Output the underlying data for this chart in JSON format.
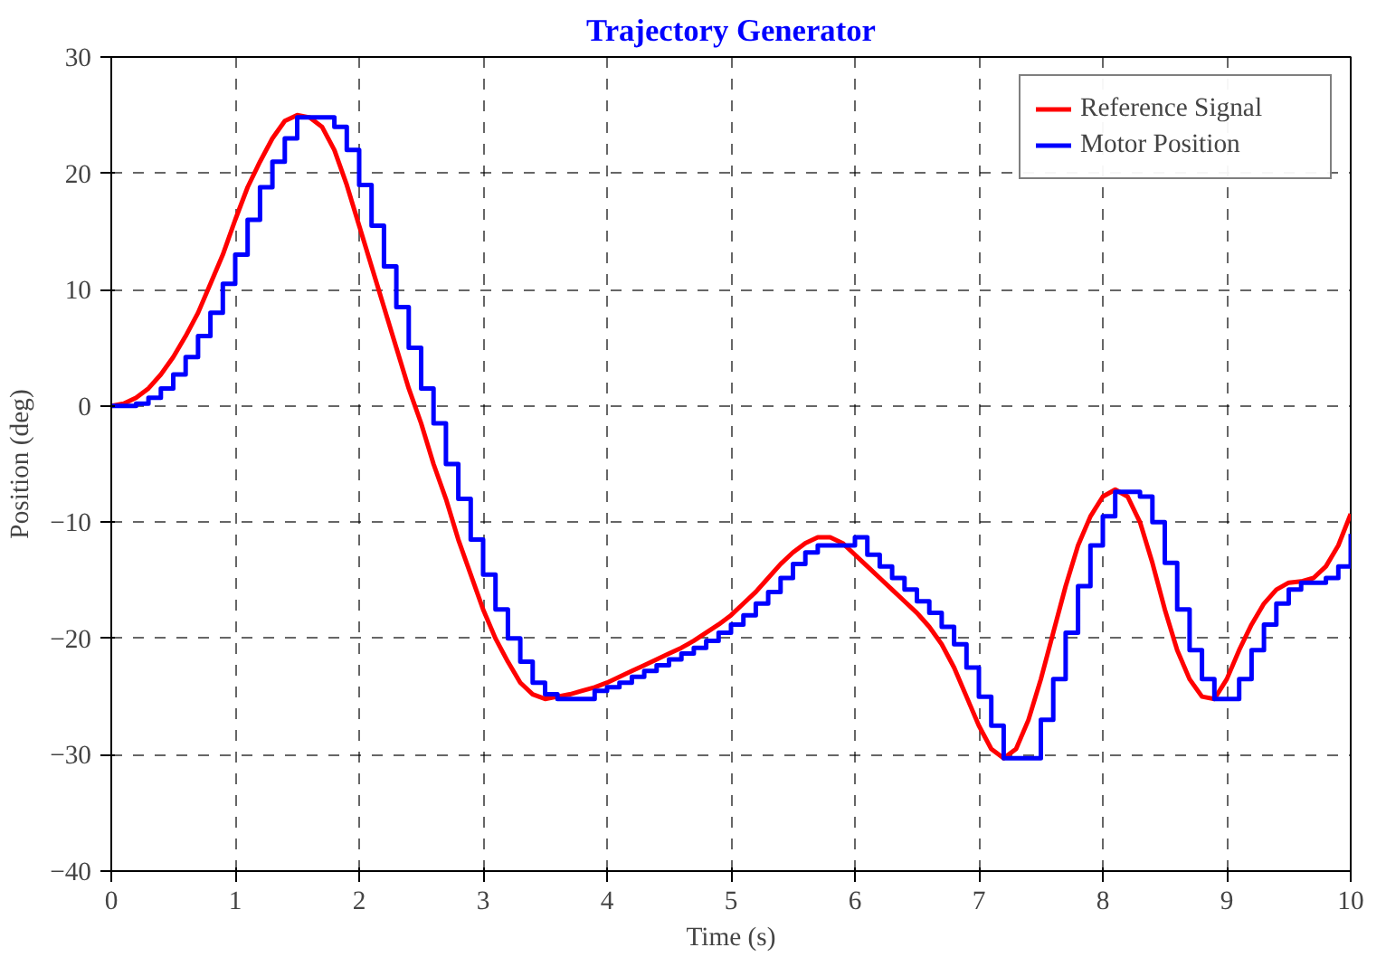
{
  "chart_data": {
    "type": "line",
    "title": "Trajectory Generator",
    "xlabel": "Time (s)",
    "ylabel": "Position (deg)",
    "xlim": [
      0,
      10
    ],
    "ylim": [
      -40,
      30
    ],
    "xticks": [
      0,
      1,
      2,
      3,
      4,
      5,
      6,
      7,
      8,
      9,
      10
    ],
    "yticks": [
      -40,
      -30,
      -20,
      -10,
      0,
      10,
      20,
      30
    ],
    "grid": true,
    "legend": "top right",
    "series": [
      {
        "name": "Reference Signal",
        "color": "#ff0000",
        "x": [
          0,
          0.1,
          0.2,
          0.3,
          0.4,
          0.5,
          0.6,
          0.7,
          0.8,
          0.9,
          1.0,
          1.1,
          1.2,
          1.3,
          1.4,
          1.5,
          1.6,
          1.7,
          1.8,
          1.9,
          2.0,
          2.1,
          2.2,
          2.3,
          2.4,
          2.5,
          2.6,
          2.7,
          2.8,
          2.9,
          3.0,
          3.1,
          3.2,
          3.3,
          3.4,
          3.5,
          3.6,
          3.7,
          3.8,
          3.9,
          4.0,
          4.1,
          4.2,
          4.3,
          4.4,
          4.5,
          4.6,
          4.7,
          4.8,
          4.9,
          5.0,
          5.1,
          5.2,
          5.3,
          5.4,
          5.5,
          5.6,
          5.7,
          5.8,
          5.9,
          6.0,
          6.1,
          6.2,
          6.3,
          6.4,
          6.5,
          6.6,
          6.7,
          6.8,
          6.9,
          7.0,
          7.1,
          7.2,
          7.3,
          7.4,
          7.5,
          7.6,
          7.7,
          7.8,
          7.9,
          8.0,
          8.1,
          8.2,
          8.3,
          8.4,
          8.5,
          8.6,
          8.7,
          8.8,
          8.9,
          9.0,
          9.1,
          9.2,
          9.3,
          9.4,
          9.5,
          9.6,
          9.7,
          9.8,
          9.9,
          10.0
        ],
        "values": [
          0,
          0.2,
          0.7,
          1.5,
          2.7,
          4.2,
          6,
          8,
          10.5,
          13,
          16,
          18.8,
          21,
          23,
          24.5,
          25,
          24.8,
          24,
          22,
          19,
          15.5,
          12,
          8.5,
          5,
          1.5,
          -1.5,
          -5,
          -8,
          -11.5,
          -14.5,
          -17.5,
          -20,
          -22,
          -23.8,
          -24.8,
          -25.2,
          -25,
          -24.8,
          -24.5,
          -24.2,
          -23.8,
          -23.3,
          -22.8,
          -22.3,
          -21.8,
          -21.3,
          -20.8,
          -20.2,
          -19.5,
          -18.8,
          -18,
          -17,
          -16,
          -14.8,
          -13.6,
          -12.6,
          -11.8,
          -11.3,
          -11.3,
          -11.8,
          -12.8,
          -13.8,
          -14.8,
          -15.8,
          -16.8,
          -17.8,
          -19,
          -20.5,
          -22.5,
          -25,
          -27.5,
          -29.5,
          -30.3,
          -29.5,
          -27,
          -23.5,
          -19.5,
          -15.5,
          -12,
          -9.5,
          -7.8,
          -7.2,
          -7.8,
          -10,
          -13.5,
          -17.5,
          -21,
          -23.5,
          -25,
          -25.2,
          -23.5,
          -21,
          -18.8,
          -17,
          -15.8,
          -15.2,
          -15.1,
          -14.8,
          -13.8,
          -12,
          -9.3
        ]
      },
      {
        "name": "Motor Position",
        "color": "#0000ff",
        "type": "step",
        "x": [
          0,
          0.1,
          0.2,
          0.3,
          0.4,
          0.5,
          0.6,
          0.7,
          0.8,
          0.9,
          1.0,
          1.1,
          1.2,
          1.3,
          1.4,
          1.5,
          1.6,
          1.7,
          1.8,
          1.9,
          2.0,
          2.1,
          2.2,
          2.3,
          2.4,
          2.5,
          2.6,
          2.7,
          2.8,
          2.9,
          3.0,
          3.1,
          3.2,
          3.3,
          3.4,
          3.5,
          3.6,
          3.7,
          3.8,
          3.9,
          4.0,
          4.1,
          4.2,
          4.3,
          4.4,
          4.5,
          4.6,
          4.7,
          4.8,
          4.9,
          5.0,
          5.1,
          5.2,
          5.3,
          5.4,
          5.5,
          5.6,
          5.7,
          5.8,
          5.9,
          6.0,
          6.1,
          6.2,
          6.3,
          6.4,
          6.5,
          6.6,
          6.7,
          6.8,
          6.9,
          7.0,
          7.1,
          7.2,
          7.3,
          7.4,
          7.5,
          7.6,
          7.7,
          7.8,
          7.9,
          8.0,
          8.1,
          8.2,
          8.3,
          8.4,
          8.5,
          8.6,
          8.7,
          8.8,
          8.9,
          9.0,
          9.1,
          9.2,
          9.3,
          9.4,
          9.5,
          9.6,
          9.7,
          9.8,
          9.9,
          10.0
        ],
        "values": [
          0,
          0,
          0.2,
          0.7,
          1.5,
          2.7,
          4.2,
          6,
          8,
          10.5,
          13,
          16,
          18.8,
          21,
          23,
          24.8,
          24.8,
          24.8,
          24,
          22,
          19,
          15.5,
          12,
          8.5,
          5,
          1.5,
          -1.5,
          -5,
          -8,
          -11.5,
          -14.5,
          -17.5,
          -20,
          -22,
          -23.8,
          -24.8,
          -25.2,
          -25.2,
          -25.2,
          -24.5,
          -24.2,
          -23.8,
          -23.3,
          -22.8,
          -22.3,
          -21.8,
          -21.3,
          -20.8,
          -20.2,
          -19.5,
          -18.8,
          -18,
          -17,
          -16,
          -14.8,
          -13.6,
          -12.6,
          -12,
          -12,
          -12,
          -11.3,
          -12.8,
          -13.8,
          -14.8,
          -15.8,
          -16.8,
          -17.8,
          -19,
          -20.5,
          -22.5,
          -25,
          -27.5,
          -30.3,
          -30.3,
          -30.3,
          -27,
          -23.5,
          -19.5,
          -15.5,
          -12,
          -9.5,
          -7.4,
          -7.4,
          -7.8,
          -10,
          -13.5,
          -17.5,
          -21,
          -23.5,
          -25.2,
          -25.2,
          -23.5,
          -21,
          -18.8,
          -17,
          -15.8,
          -15.2,
          -15.2,
          -14.8,
          -13.8,
          -11
        ]
      }
    ]
  }
}
